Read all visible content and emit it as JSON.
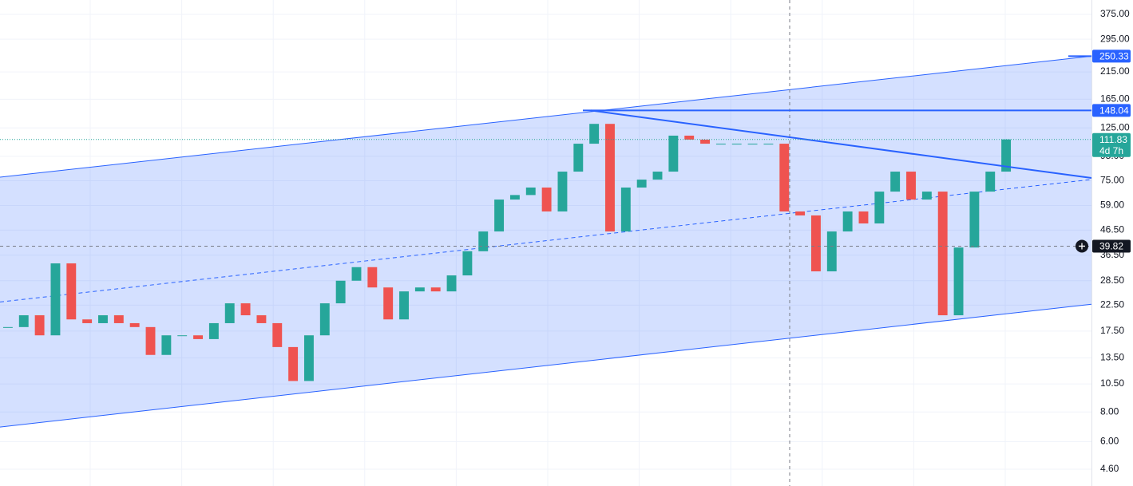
{
  "chart_data": {
    "type": "candlestick",
    "log_scale": true,
    "grid": true,
    "up_color": "#26a69a",
    "down_color": "#ef5350",
    "categories": [
      null,
      null,
      null,
      null,
      null,
      null,
      null,
      null,
      null,
      null,
      null,
      null,
      null,
      null,
      null,
      null,
      null,
      null,
      null,
      null,
      null,
      null,
      null,
      null,
      null,
      null,
      null,
      null,
      null,
      null,
      null,
      null,
      null,
      null,
      null,
      null,
      null,
      null,
      null,
      null,
      null,
      null,
      null,
      null,
      null,
      null,
      null,
      null,
      null,
      null,
      null,
      null,
      null,
      null,
      null,
      null,
      null,
      null,
      null,
      null,
      null,
      null,
      null,
      null
    ],
    "values": [
      18.2,
      20.4,
      16.8,
      33.7,
      19.6,
      18.9,
      20.4,
      18.9,
      18.2,
      13.9,
      16.8,
      16.8,
      16.2,
      18.9,
      22.9,
      20.4,
      18.9,
      15.0,
      10.8,
      16.8,
      22.9,
      28.5,
      32.5,
      26.7,
      19.6,
      25.7,
      26.7,
      25.7,
      30.0,
      37.9,
      45.9,
      62.5,
      65.3,
      70.2,
      55.7,
      81.9,
      107.3,
      130,
      45.9,
      70.2,
      75.8,
      81.9,
      116,
      111.6,
      107.3,
      107.3,
      107.3,
      107.3,
      107.3,
      55.7,
      53.6,
      31.2,
      45.9,
      55.7,
      49.6,
      67.5,
      81.9,
      62.5,
      67.5,
      20.4,
      39.3,
      67.5,
      81.9,
      111.83
    ],
    "ylim": [
      3.91,
      431
    ],
    "yticks": [
      {
        "value": 375,
        "label": "375.00"
      },
      {
        "value": 295,
        "label": "295.00"
      },
      {
        "value": 215,
        "label": "215.00"
      },
      {
        "value": 165,
        "label": "165.00"
      },
      {
        "value": 125,
        "label": "125.00"
      },
      {
        "value": 95,
        "label": "95.00"
      },
      {
        "value": 75,
        "label": "75.00"
      },
      {
        "value": 59,
        "label": "59.00"
      },
      {
        "value": 46.5,
        "label": "46.50"
      },
      {
        "value": 36.5,
        "label": "36.50"
      },
      {
        "value": 28.5,
        "label": "28.50"
      },
      {
        "value": 22.5,
        "label": "22.50"
      },
      {
        "value": 17.5,
        "label": "17.50"
      },
      {
        "value": 13.5,
        "label": "13.50"
      },
      {
        "value": 10.5,
        "label": "10.50"
      },
      {
        "value": 8,
        "label": "8.00"
      },
      {
        "value": 6,
        "label": "6.00"
      },
      {
        "value": 4.6,
        "label": "4.60"
      }
    ],
    "channel": {
      "color": "#2962ff",
      "upper": [
        77.6,
        250.33
      ],
      "middle": [
        23.2,
        75.9
      ],
      "lower": [
        6.92,
        22.7
      ]
    },
    "trendline": [
      148.04,
      77.0
    ],
    "price_labels": [
      {
        "value": 250.33,
        "color": "#2962ff"
      },
      {
        "value": 148.04,
        "color": "#2962ff"
      },
      {
        "value": 111.83,
        "color": "#26a69a"
      },
      {
        "value": 39.82,
        "color": "#131722"
      }
    ],
    "countdown": "4d 7h"
  }
}
